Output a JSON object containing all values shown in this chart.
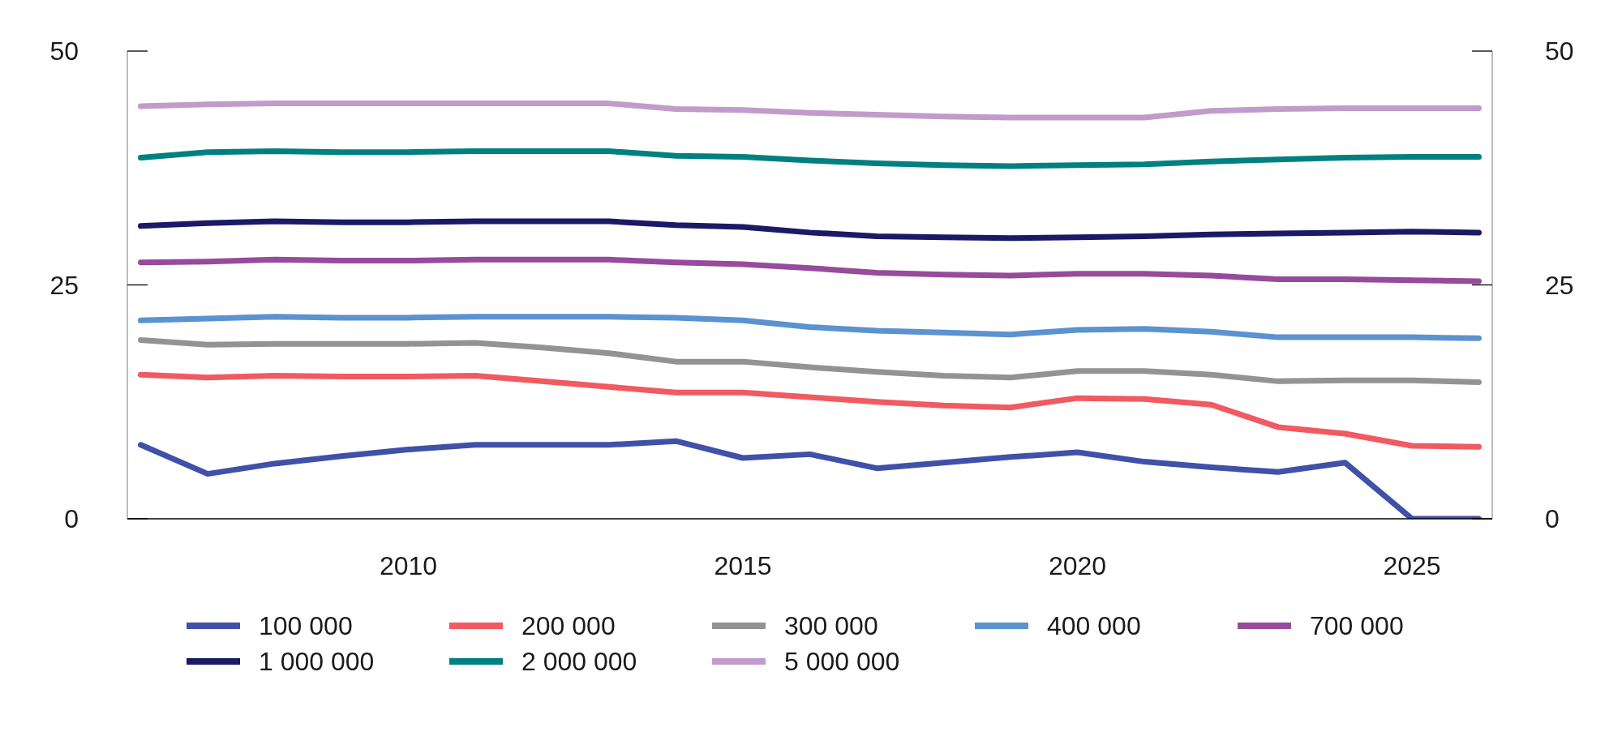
{
  "chart_data": {
    "type": "line",
    "x": [
      2006,
      2007,
      2008,
      2009,
      2010,
      2011,
      2012,
      2013,
      2014,
      2015,
      2016,
      2017,
      2018,
      2019,
      2020,
      2021,
      2022,
      2023,
      2024,
      2025,
      2026
    ],
    "xlim": [
      2005.8,
      2026.2
    ],
    "xticks": [
      2010,
      2015,
      2020,
      2025
    ],
    "ylim": [
      0,
      50
    ],
    "yticks": [
      0,
      25,
      50
    ],
    "y2lim": [
      0,
      50
    ],
    "y2ticks": [
      0,
      25,
      50
    ],
    "grid": false,
    "legend": "bottom",
    "series": [
      {
        "name": "100 000",
        "color": "#3f51a8",
        "values": [
          7.9,
          4.8,
          5.9,
          6.7,
          7.4,
          7.9,
          7.9,
          7.9,
          8.3,
          6.5,
          6.9,
          5.4,
          6.0,
          6.6,
          7.1,
          6.1,
          5.5,
          5.0,
          6.0,
          0,
          0
        ]
      },
      {
        "name": "200 000",
        "color": "#f05a60",
        "values": [
          15.4,
          15.1,
          15.3,
          15.2,
          15.2,
          15.3,
          14.7,
          14.1,
          13.5,
          13.5,
          13.0,
          12.5,
          12.1,
          11.9,
          12.9,
          12.8,
          12.2,
          9.8,
          9.1,
          7.8,
          7.7
        ]
      },
      {
        "name": "300 000",
        "color": "#939393",
        "values": [
          19.1,
          18.6,
          18.7,
          18.7,
          18.7,
          18.8,
          18.3,
          17.7,
          16.8,
          16.8,
          16.2,
          15.7,
          15.3,
          15.1,
          15.8,
          15.8,
          15.4,
          14.7,
          14.8,
          14.8,
          14.6
        ]
      },
      {
        "name": "400 000",
        "color": "#5b92d0",
        "values": [
          21.2,
          21.4,
          21.6,
          21.5,
          21.5,
          21.6,
          21.6,
          21.6,
          21.5,
          21.2,
          20.5,
          20.1,
          19.9,
          19.7,
          20.2,
          20.3,
          20.0,
          19.4,
          19.4,
          19.4,
          19.3
        ]
      },
      {
        "name": "700 000",
        "color": "#964b9b",
        "values": [
          27.4,
          27.5,
          27.7,
          27.6,
          27.6,
          27.7,
          27.7,
          27.7,
          27.4,
          27.2,
          26.8,
          26.3,
          26.1,
          26.0,
          26.2,
          26.2,
          26.0,
          25.6,
          25.6,
          25.5,
          25.4
        ]
      },
      {
        "name": "1 000 000",
        "color": "#1a1a66",
        "values": [
          31.3,
          31.6,
          31.8,
          31.7,
          31.7,
          31.8,
          31.8,
          31.8,
          31.4,
          31.2,
          30.6,
          30.2,
          30.1,
          30.0,
          30.1,
          30.2,
          30.4,
          30.5,
          30.6,
          30.7,
          30.6
        ]
      },
      {
        "name": "2 000 000",
        "color": "#008080",
        "values": [
          38.6,
          39.2,
          39.3,
          39.2,
          39.2,
          39.3,
          39.3,
          39.3,
          38.8,
          38.7,
          38.3,
          38.0,
          37.8,
          37.7,
          37.8,
          37.9,
          38.2,
          38.4,
          38.6,
          38.7,
          38.7
        ]
      },
      {
        "name": "5 000 000",
        "color": "#c29bcb",
        "values": [
          44.1,
          44.3,
          44.4,
          44.4,
          44.4,
          44.4,
          44.4,
          44.4,
          43.8,
          43.7,
          43.4,
          43.2,
          43.0,
          42.9,
          42.9,
          42.9,
          43.6,
          43.8,
          43.9,
          43.9,
          43.9
        ]
      }
    ]
  }
}
